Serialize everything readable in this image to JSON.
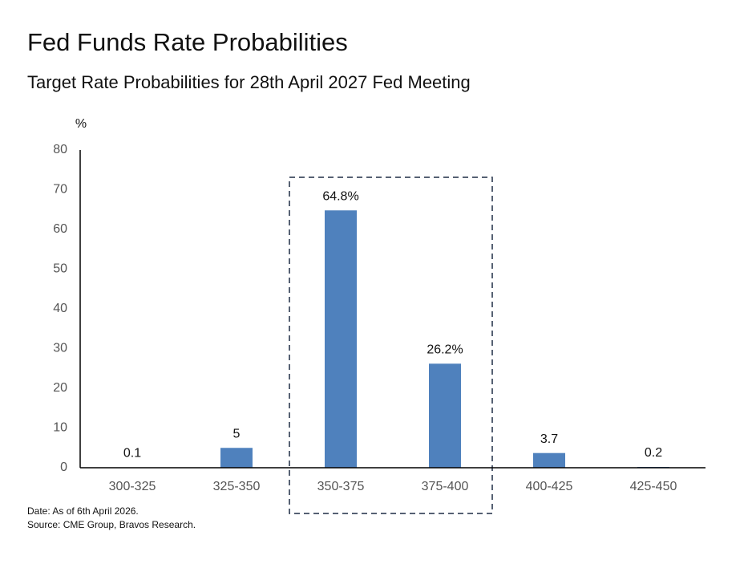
{
  "chart_data": {
    "type": "bar",
    "title": "Fed Funds Rate Probabilities",
    "subtitle": "Target Rate Probabilities for 28th April 2027 Fed Meeting",
    "y_label": "%",
    "categories": [
      "300-325",
      "325-350",
      "350-375",
      "375-400",
      "400-425",
      "425-450"
    ],
    "values": [
      0.1,
      5,
      64.8,
      26.2,
      3.7,
      0.2
    ],
    "value_labels": [
      "0.1",
      "5",
      "64.8%",
      "26.2%",
      "3.7",
      "0.2"
    ],
    "color": "#4f81bd",
    "ylim": [
      0,
      80
    ],
    "yticks": [
      0,
      10,
      20,
      30,
      40,
      50,
      60,
      70,
      80
    ],
    "grid": false,
    "notes": [
      "Date: As of 6th April 2026.",
      "Source: CME Group, Bravos Research."
    ]
  }
}
